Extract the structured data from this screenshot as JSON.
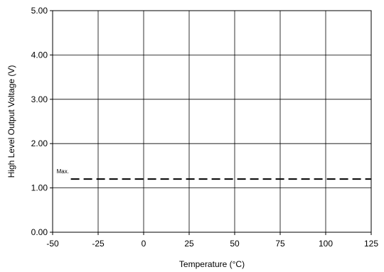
{
  "chart_data": {
    "type": "line",
    "title": "",
    "xlabel": "Temperature (°C)",
    "ylabel": "High Level Output Voltage (V)",
    "xlim": [
      -50,
      125
    ],
    "ylim": [
      0,
      5
    ],
    "xticks": [
      -50,
      -25,
      0,
      25,
      50,
      75,
      100,
      125
    ],
    "xtick_labels": [
      "-50",
      "-25",
      "0",
      "25",
      "50",
      "75",
      "100",
      "125"
    ],
    "yticks": [
      0,
      1,
      2,
      3,
      4,
      5
    ],
    "ytick_labels": [
      "0.00",
      "1.00",
      "2.00",
      "3.00",
      "4.00",
      "5.00"
    ],
    "grid": true,
    "legend": "none",
    "series": [
      {
        "name": "Max.",
        "style": "dashed",
        "color": "#000000",
        "x": [
          -40,
          125
        ],
        "y": [
          1.2,
          1.2
        ]
      }
    ],
    "annotations": [
      {
        "text": "Max.",
        "x": -40,
        "y": 1.2
      }
    ]
  }
}
